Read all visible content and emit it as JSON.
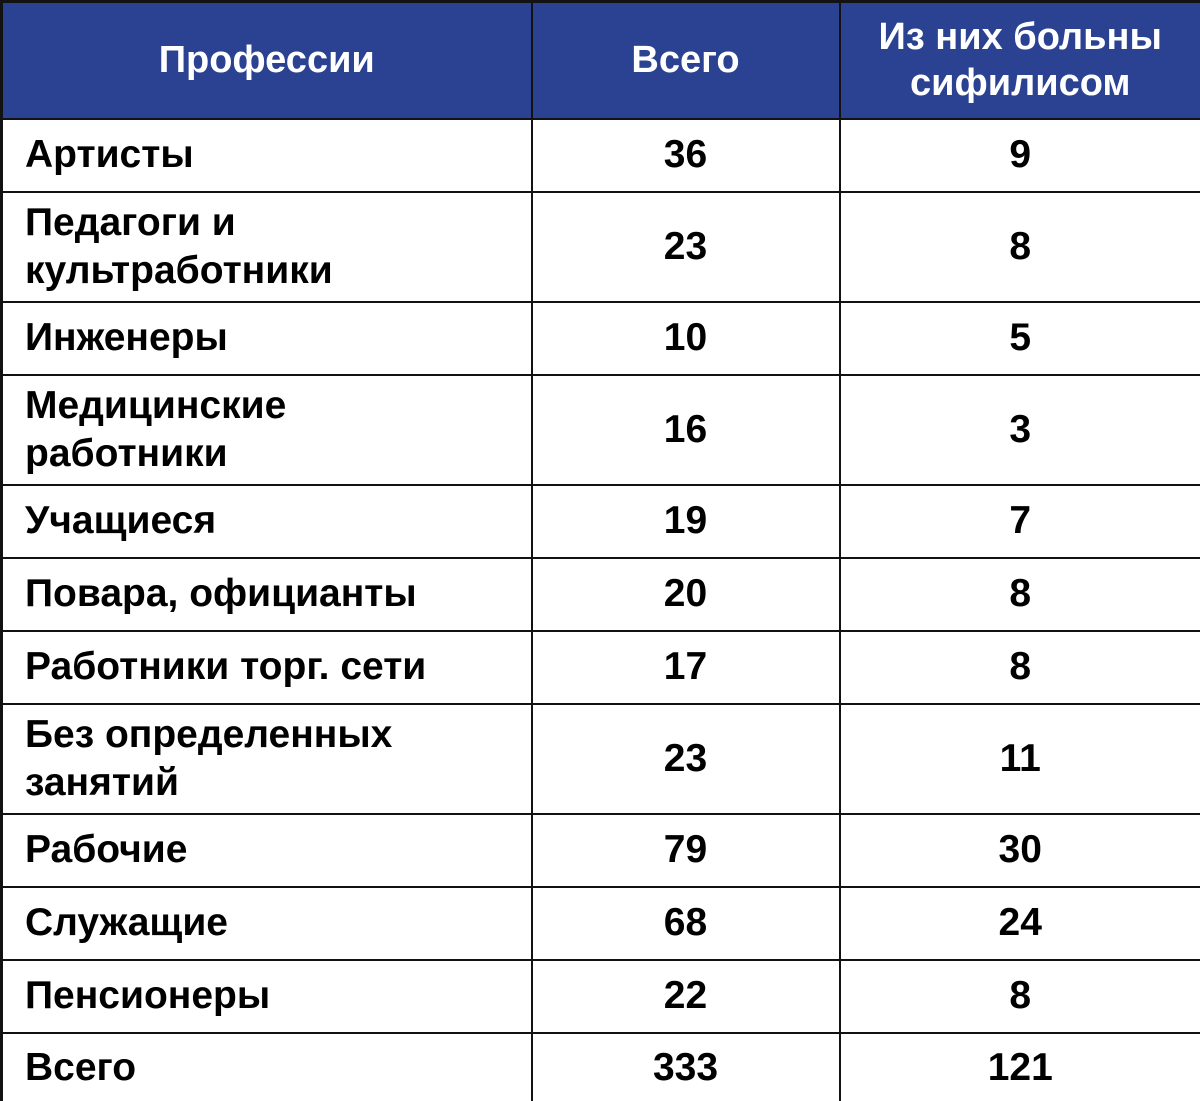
{
  "colors": {
    "header_bg": "#2a4291",
    "header_text": "#ffffff",
    "body_text": "#000000",
    "border": "#121212",
    "row_bg": "#ffffff"
  },
  "table": {
    "header": {
      "professions": "Профессии",
      "total": "Всего",
      "sick": "Из них больны\nсифилисом"
    },
    "rows": [
      {
        "profession": "Артисты",
        "total": "36",
        "sick": "9"
      },
      {
        "profession": "Педагоги и\nкультработники",
        "total": "23",
        "sick": "8"
      },
      {
        "profession": "Инженеры",
        "total": "10",
        "sick": "5"
      },
      {
        "profession": "Медицинские\nработники",
        "total": "16",
        "sick": "3"
      },
      {
        "profession": "Учащиеся",
        "total": "19",
        "sick": "7"
      },
      {
        "profession": "Повара, официанты",
        "total": "20",
        "sick": "8"
      },
      {
        "profession": "Работники торг. сети",
        "total": "17",
        "sick": "8"
      },
      {
        "profession": "Без определенных\nзанятий",
        "total": "23",
        "sick": "11"
      },
      {
        "profession": "Рабочие",
        "total": "79",
        "sick": "30"
      },
      {
        "profession": "Служащие",
        "total": "68",
        "sick": "24"
      },
      {
        "profession": "Пенсионеры",
        "total": "22",
        "sick": "8"
      },
      {
        "profession": "Всего",
        "total": "333",
        "sick": "121"
      }
    ]
  },
  "chart_data": {
    "type": "table",
    "columns": [
      "Профессии",
      "Всего",
      "Из них больны сифилисом"
    ],
    "rows": [
      [
        "Артисты",
        36,
        9
      ],
      [
        "Педагоги и культработники",
        23,
        8
      ],
      [
        "Инженеры",
        10,
        5
      ],
      [
        "Медицинские работники",
        16,
        3
      ],
      [
        "Учащиеся",
        19,
        7
      ],
      [
        "Повара, официанты",
        20,
        8
      ],
      [
        "Работники торг. сети",
        17,
        8
      ],
      [
        "Без определенных занятий",
        23,
        11
      ],
      [
        "Рабочие",
        79,
        30
      ],
      [
        "Служащие",
        68,
        24
      ],
      [
        "Пенсионеры",
        22,
        8
      ],
      [
        "Всего",
        333,
        121
      ]
    ],
    "totals_row": [
      "Всего",
      333,
      121
    ],
    "title": "",
    "layout": {
      "header_background": "#2a4291",
      "grid": true
    }
  }
}
